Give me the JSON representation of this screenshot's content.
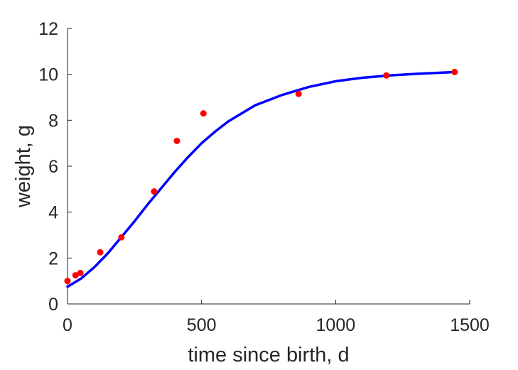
{
  "chart_data": {
    "type": "scatter",
    "title": "",
    "xlabel": "time since birth, d",
    "ylabel": "weight, g",
    "xlim": [
      0,
      1500
    ],
    "ylim": [
      0,
      12
    ],
    "xticks": [
      0,
      500,
      1000,
      1500
    ],
    "yticks": [
      0,
      2,
      4,
      6,
      8,
      10,
      12
    ],
    "grid": false,
    "series": [
      {
        "kind": "scatter",
        "color": "#ff0000",
        "x": [
          0,
          30,
          48,
          122,
          201,
          323,
          408,
          507,
          862,
          1189,
          1444
        ],
        "y": [
          1.0,
          1.25,
          1.35,
          2.25,
          2.9,
          4.9,
          7.1,
          8.3,
          9.15,
          9.95,
          10.1
        ]
      },
      {
        "kind": "line",
        "color": "#0000ff",
        "x": [
          0,
          50,
          100,
          150,
          200,
          250,
          300,
          350,
          400,
          450,
          500,
          550,
          600,
          700,
          800,
          900,
          1000,
          1100,
          1200,
          1300,
          1444
        ],
        "y": [
          0.75,
          1.1,
          1.6,
          2.2,
          2.9,
          3.6,
          4.35,
          5.05,
          5.75,
          6.4,
          7.0,
          7.5,
          7.95,
          8.65,
          9.1,
          9.45,
          9.7,
          9.85,
          9.95,
          10.02,
          10.1
        ]
      }
    ]
  }
}
